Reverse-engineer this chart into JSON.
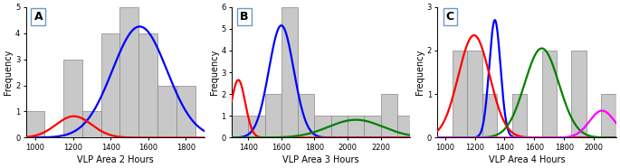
{
  "panel_A": {
    "title": "A",
    "xlabel": "VLP Area 2 Hours",
    "ylabel": "Frequency",
    "xlim": [
      950,
      1900
    ],
    "ylim": [
      0,
      5
    ],
    "xticks": [
      1000,
      1200,
      1400,
      1600,
      1800
    ],
    "yticks": [
      0,
      1,
      2,
      3,
      4,
      5
    ],
    "hist_edges": [
      950,
      1050,
      1150,
      1250,
      1350,
      1450,
      1550,
      1650,
      1750,
      1850
    ],
    "hist_counts": [
      1,
      0,
      3,
      1,
      4,
      5,
      4,
      2,
      2
    ],
    "curves": [
      {
        "color": "blue",
        "mu": 1555,
        "sigma": 145,
        "amp": 4.25
      },
      {
        "color": "red",
        "mu": 1205,
        "sigma": 95,
        "amp": 0.82
      }
    ]
  },
  "panel_B": {
    "title": "B",
    "xlabel": "VLP Area 3 Hours",
    "ylabel": "Frequency",
    "xlim": [
      1300,
      2380
    ],
    "ylim": [
      0,
      6
    ],
    "xticks": [
      1400,
      1600,
      1800,
      2000,
      2200
    ],
    "yticks": [
      0,
      1,
      2,
      3,
      4,
      5,
      6
    ],
    "hist_edges": [
      1300,
      1400,
      1500,
      1600,
      1700,
      1800,
      1900,
      2000,
      2100,
      2200,
      2300,
      2380
    ],
    "hist_counts": [
      1,
      1,
      2,
      6,
      2,
      1,
      1,
      1,
      1,
      2,
      1
    ],
    "curves": [
      {
        "color": "blue",
        "mu": 1600,
        "sigma": 75,
        "amp": 5.15
      },
      {
        "color": "red",
        "mu": 1340,
        "sigma": 42,
        "amp": 2.65
      },
      {
        "color": "green",
        "mu": 2050,
        "sigma": 165,
        "amp": 0.82
      }
    ]
  },
  "panel_C": {
    "title": "C",
    "xlabel": "VLP Area 4 Hours",
    "ylabel": "Frequency",
    "xlim": [
      950,
      2150
    ],
    "ylim": [
      0,
      3
    ],
    "xticks": [
      1000,
      1200,
      1400,
      1600,
      1800,
      2000
    ],
    "yticks": [
      0,
      1,
      2,
      3
    ],
    "hist_edges": [
      950,
      1050,
      1150,
      1250,
      1350,
      1450,
      1550,
      1650,
      1750,
      1850,
      1950,
      2050,
      2150
    ],
    "hist_counts": [
      0,
      2,
      2,
      1,
      0,
      1,
      0,
      2,
      0,
      2,
      0,
      1
    ],
    "curves": [
      {
        "color": "blue",
        "mu": 1335,
        "sigma": 38,
        "amp": 2.7
      },
      {
        "color": "red",
        "mu": 1195,
        "sigma": 105,
        "amp": 2.35
      },
      {
        "color": "green",
        "mu": 1650,
        "sigma": 115,
        "amp": 2.05
      },
      {
        "color": "magenta",
        "mu": 2055,
        "sigma": 85,
        "amp": 0.62
      }
    ]
  },
  "bar_color": "#c8c8c8",
  "bar_edge_color": "#888888",
  "background_color": "white",
  "fig_facecolor": "white",
  "label_fontsize": 7,
  "tick_fontsize": 6,
  "title_fontsize": 9
}
